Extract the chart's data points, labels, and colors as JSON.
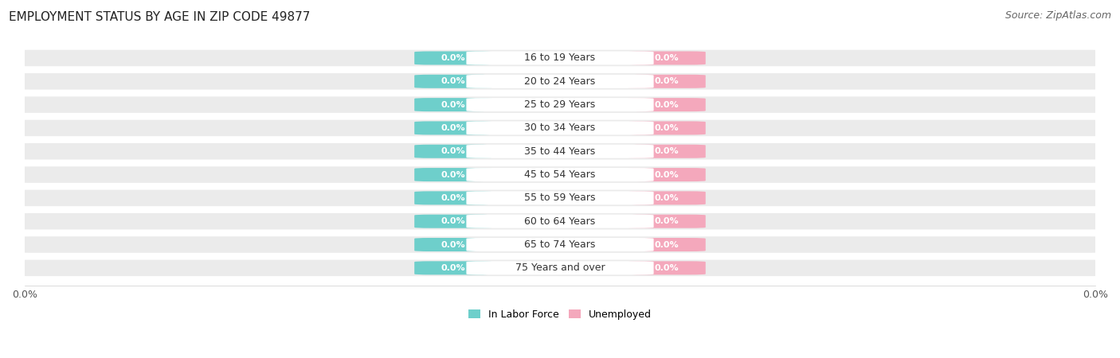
{
  "title": "EMPLOYMENT STATUS BY AGE IN ZIP CODE 49877",
  "source": "Source: ZipAtlas.com",
  "categories": [
    "16 to 19 Years",
    "20 to 24 Years",
    "25 to 29 Years",
    "30 to 34 Years",
    "35 to 44 Years",
    "45 to 54 Years",
    "55 to 59 Years",
    "60 to 64 Years",
    "65 to 74 Years",
    "75 Years and over"
  ],
  "labor_force_values": [
    0.0,
    0.0,
    0.0,
    0.0,
    0.0,
    0.0,
    0.0,
    0.0,
    0.0,
    0.0
  ],
  "unemployed_values": [
    0.0,
    0.0,
    0.0,
    0.0,
    0.0,
    0.0,
    0.0,
    0.0,
    0.0,
    0.0
  ],
  "labor_force_color": "#6ecfcb",
  "unemployed_color": "#f4a8bc",
  "row_bg_color": "#ebebeb",
  "row_separator_color": "#ffffff",
  "label_text": "0.0%",
  "legend_labor": "In Labor Force",
  "legend_unemployed": "Unemployed",
  "title_fontsize": 11,
  "source_fontsize": 9,
  "tick_fontsize": 9,
  "label_fontsize": 8,
  "cat_fontsize": 9
}
